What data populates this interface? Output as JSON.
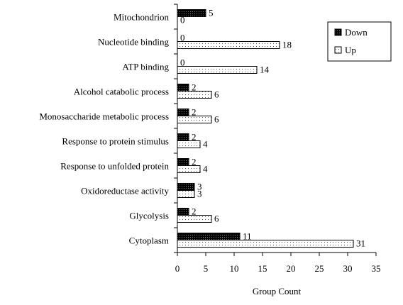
{
  "chart_data": {
    "type": "bar",
    "orientation": "horizontal",
    "categories": [
      "Mitochondrion",
      "Nucleotide binding",
      "ATP binding",
      "Alcohol catabolic process",
      "Monosaccharide metabolic process",
      "Response to protein stimulus",
      "Response to unfolded protein",
      "Oxidoreductase activity",
      "Glycolysis",
      "Cytoplasm"
    ],
    "series": [
      {
        "name": "Down",
        "values": [
          5,
          0,
          0,
          2,
          2,
          2,
          2,
          3,
          2,
          11
        ],
        "color": "#000000",
        "pattern": "dense-dots-dark"
      },
      {
        "name": "Up",
        "values": [
          0,
          18,
          14,
          6,
          6,
          4,
          4,
          3,
          6,
          31
        ],
        "color": "#ffffff",
        "pattern": "sparse-dots-light"
      }
    ],
    "xlabel": "Group Count",
    "ylabel": "",
    "title": "",
    "xlim": [
      0,
      35
    ],
    "xticks": [
      0,
      5,
      10,
      15,
      20,
      25,
      30,
      35
    ],
    "grid": false,
    "legend_position": "top-right",
    "data_labels": true
  }
}
